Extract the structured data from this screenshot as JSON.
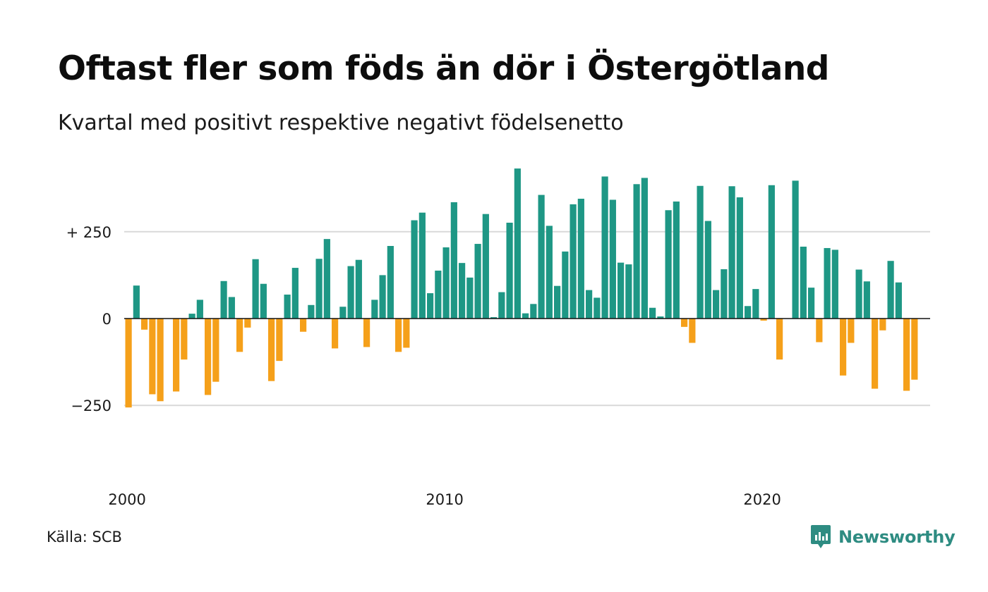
{
  "header": {
    "title": "Oftast fler som föds än dör i Östergötland",
    "subtitle": "Kvartal med positivt respektive negativt födelsenetto"
  },
  "footer": {
    "source": "Källa: SCB",
    "brand": "Newsworthy"
  },
  "colors": {
    "positive": "#1e9785",
    "negative": "#f5a01a",
    "grid": "#d9d9d9",
    "zero_line": "#111111",
    "brand": "#2e8c82"
  },
  "chart_data": {
    "type": "bar",
    "start_year": 2000,
    "start_quarter": 1,
    "period": "quarter",
    "ylim": [
      -350,
      420
    ],
    "y_ticks": [
      {
        "value": 250,
        "label": "+ 250"
      },
      {
        "value": 0,
        "label": "0"
      },
      {
        "value": -250,
        "label": "−250"
      }
    ],
    "x_ticks": [
      {
        "year": 2000,
        "label": "2000"
      },
      {
        "year": 2010,
        "label": "2010"
      },
      {
        "year": 2020,
        "label": "2020"
      }
    ],
    "values": [
      -256,
      95,
      -32,
      -218,
      -238,
      0,
      -210,
      -118,
      14,
      54,
      -220,
      -182,
      108,
      62,
      -96,
      -26,
      171,
      100,
      -180,
      -122,
      69,
      146,
      -38,
      39,
      172,
      229,
      -86,
      34,
      151,
      169,
      -82,
      54,
      125,
      209,
      -96,
      -84,
      283,
      305,
      73,
      138,
      205,
      335,
      160,
      118,
      215,
      301,
      4,
      76,
      276,
      432,
      15,
      42,
      356,
      267,
      94,
      193,
      329,
      345,
      82,
      60,
      409,
      342,
      161,
      156,
      387,
      405,
      31,
      6,
      312,
      337,
      -24,
      -70,
      382,
      281,
      82,
      142,
      381,
      349,
      36,
      85,
      -6,
      384,
      -118,
      0,
      397,
      207,
      89,
      -68,
      203,
      198,
      -164,
      -70,
      141,
      107,
      -202,
      -34,
      166,
      104,
      -208,
      -176
    ]
  }
}
